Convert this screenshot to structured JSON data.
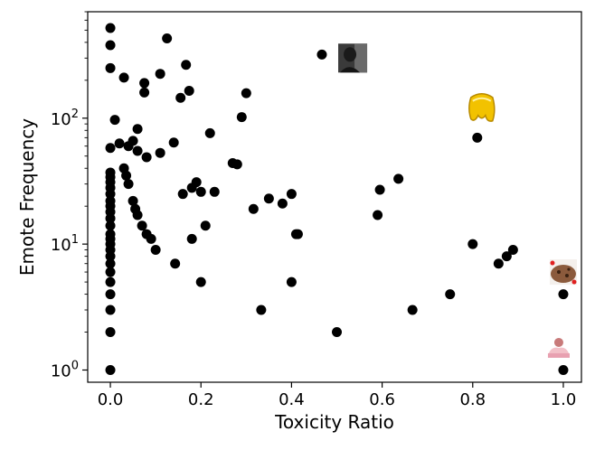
{
  "chart_data": {
    "type": "scatter",
    "xlabel": "Toxicity Ratio",
    "ylabel": "Emote Frequency",
    "xlim": [
      -0.05,
      1.04
    ],
    "ylim": [
      0.8,
      700
    ],
    "yscale": "log",
    "grid": false,
    "legend": "none",
    "x_ticks": [
      0.0,
      0.2,
      0.4,
      0.6,
      0.8,
      1.0
    ],
    "x_tick_labels": [
      "0.0",
      "0.2",
      "0.4",
      "0.6",
      "0.8",
      "1.0"
    ],
    "y_ticks": [
      1,
      10,
      100
    ],
    "y_tick_labels": [
      {
        "base": "10",
        "exp": "0"
      },
      {
        "base": "10",
        "exp": "1"
      },
      {
        "base": "10",
        "exp": "2"
      }
    ],
    "marker_color": "#000000",
    "points": [
      {
        "x": 0.0,
        "y": 1
      },
      {
        "x": 0.0,
        "y": 2
      },
      {
        "x": 0.0,
        "y": 3
      },
      {
        "x": 0.0,
        "y": 4
      },
      {
        "x": 0.0,
        "y": 5
      },
      {
        "x": 0.0,
        "y": 6
      },
      {
        "x": 0.0,
        "y": 7
      },
      {
        "x": 0.0,
        "y": 8
      },
      {
        "x": 0.0,
        "y": 9
      },
      {
        "x": 0.0,
        "y": 10
      },
      {
        "x": 0.0,
        "y": 11
      },
      {
        "x": 0.0,
        "y": 12
      },
      {
        "x": 0.0,
        "y": 14
      },
      {
        "x": 0.0,
        "y": 16
      },
      {
        "x": 0.0,
        "y": 18
      },
      {
        "x": 0.0,
        "y": 20
      },
      {
        "x": 0.0,
        "y": 22
      },
      {
        "x": 0.0,
        "y": 25
      },
      {
        "x": 0.0,
        "y": 28
      },
      {
        "x": 0.0,
        "y": 31
      },
      {
        "x": 0.0,
        "y": 34
      },
      {
        "x": 0.0,
        "y": 37
      },
      {
        "x": 0.0,
        "y": 58
      },
      {
        "x": 0.0,
        "y": 250
      },
      {
        "x": 0.0,
        "y": 380
      },
      {
        "x": 0.0,
        "y": 520
      },
      {
        "x": 0.01,
        "y": 97
      },
      {
        "x": 0.02,
        "y": 63
      },
      {
        "x": 0.03,
        "y": 210
      },
      {
        "x": 0.03,
        "y": 40
      },
      {
        "x": 0.035,
        "y": 35
      },
      {
        "x": 0.04,
        "y": 30
      },
      {
        "x": 0.04,
        "y": 60
      },
      {
        "x": 0.05,
        "y": 66
      },
      {
        "x": 0.05,
        "y": 22
      },
      {
        "x": 0.055,
        "y": 19
      },
      {
        "x": 0.06,
        "y": 17
      },
      {
        "x": 0.06,
        "y": 82
      },
      {
        "x": 0.06,
        "y": 55
      },
      {
        "x": 0.07,
        "y": 14
      },
      {
        "x": 0.075,
        "y": 190
      },
      {
        "x": 0.075,
        "y": 160
      },
      {
        "x": 0.08,
        "y": 49
      },
      {
        "x": 0.08,
        "y": 12
      },
      {
        "x": 0.09,
        "y": 11
      },
      {
        "x": 0.1,
        "y": 9
      },
      {
        "x": 0.11,
        "y": 225
      },
      {
        "x": 0.11,
        "y": 53
      },
      {
        "x": 0.125,
        "y": 430
      },
      {
        "x": 0.14,
        "y": 64
      },
      {
        "x": 0.143,
        "y": 7
      },
      {
        "x": 0.155,
        "y": 145
      },
      {
        "x": 0.16,
        "y": 25
      },
      {
        "x": 0.167,
        "y": 265
      },
      {
        "x": 0.174,
        "y": 165
      },
      {
        "x": 0.18,
        "y": 11
      },
      {
        "x": 0.18,
        "y": 28
      },
      {
        "x": 0.19,
        "y": 31
      },
      {
        "x": 0.2,
        "y": 26
      },
      {
        "x": 0.2,
        "y": 5
      },
      {
        "x": 0.21,
        "y": 14
      },
      {
        "x": 0.22,
        "y": 76
      },
      {
        "x": 0.23,
        "y": 26
      },
      {
        "x": 0.27,
        "y": 44
      },
      {
        "x": 0.28,
        "y": 43
      },
      {
        "x": 0.29,
        "y": 102
      },
      {
        "x": 0.3,
        "y": 158
      },
      {
        "x": 0.316,
        "y": 19
      },
      {
        "x": 0.333,
        "y": 3
      },
      {
        "x": 0.35,
        "y": 23
      },
      {
        "x": 0.38,
        "y": 21
      },
      {
        "x": 0.4,
        "y": 25
      },
      {
        "x": 0.4,
        "y": 5
      },
      {
        "x": 0.41,
        "y": 12
      },
      {
        "x": 0.414,
        "y": 12
      },
      {
        "x": 0.467,
        "y": 320
      },
      {
        "x": 0.5,
        "y": 2
      },
      {
        "x": 0.59,
        "y": 17
      },
      {
        "x": 0.595,
        "y": 27
      },
      {
        "x": 0.636,
        "y": 33
      },
      {
        "x": 0.667,
        "y": 3
      },
      {
        "x": 0.75,
        "y": 4
      },
      {
        "x": 0.8,
        "y": 10
      },
      {
        "x": 0.81,
        "y": 70
      },
      {
        "x": 0.857,
        "y": 7
      },
      {
        "x": 0.875,
        "y": 8
      },
      {
        "x": 0.889,
        "y": 9
      },
      {
        "x": 1.0,
        "y": 1
      },
      {
        "x": 1.0,
        "y": 4
      }
    ],
    "emote_images": [
      {
        "x": 0.535,
        "y": 300,
        "icon": "dark-portrait-emote"
      },
      {
        "x": 0.82,
        "y": 120,
        "icon": "yellow-blob-emote"
      },
      {
        "x": 1.0,
        "y": 6,
        "icon": "cookie-emote"
      },
      {
        "x": 0.99,
        "y": 1.5,
        "icon": "pink-figure-emote"
      }
    ]
  }
}
